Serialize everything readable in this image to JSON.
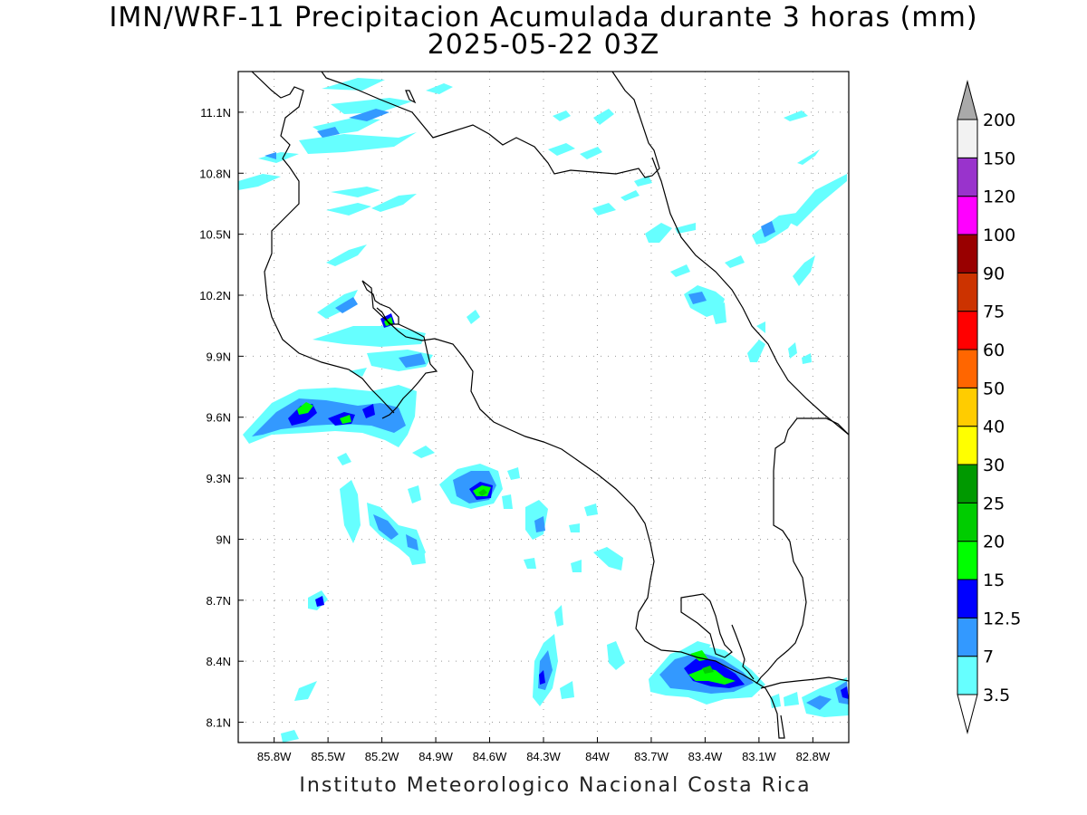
{
  "title_line1": "IMN/WRF-11 Precipitacion Acumulada durante 3 horas (mm)",
  "title_line2": "2025-05-22 03Z",
  "footer": "Instituto Meteorologico Nacional Costa Rica",
  "map": {
    "lon_range": [
      -86.0,
      -82.6
    ],
    "lat_range": [
      8.0,
      11.3
    ],
    "lon_ticks": [
      {
        "value": -85.8,
        "label": "85.8W"
      },
      {
        "value": -85.5,
        "label": "85.5W"
      },
      {
        "value": -85.2,
        "label": "85.2W"
      },
      {
        "value": -84.9,
        "label": "84.9W"
      },
      {
        "value": -84.6,
        "label": "84.6W"
      },
      {
        "value": -84.3,
        "label": "84.3W"
      },
      {
        "value": -84.0,
        "label": "84W"
      },
      {
        "value": -83.7,
        "label": "83.7W"
      },
      {
        "value": -83.4,
        "label": "83.4W"
      },
      {
        "value": -83.1,
        "label": "83.1W"
      },
      {
        "value": -82.8,
        "label": "82.8W"
      }
    ],
    "lat_ticks": [
      {
        "value": 11.1,
        "label": "11.1N"
      },
      {
        "value": 10.8,
        "label": "10.8N"
      },
      {
        "value": 10.5,
        "label": "10.5N"
      },
      {
        "value": 10.2,
        "label": "10.2N"
      },
      {
        "value": 9.9,
        "label": "9.9N"
      },
      {
        "value": 9.6,
        "label": "9.6N"
      },
      {
        "value": 9.3,
        "label": "9.3N"
      },
      {
        "value": 9.0,
        "label": "9N"
      },
      {
        "value": 8.7,
        "label": "8.7N"
      },
      {
        "value": 8.4,
        "label": "8.4N"
      },
      {
        "value": 8.1,
        "label": "8.1N"
      }
    ],
    "grid": true
  },
  "colorbar": {
    "levels": [
      "3.5",
      "7",
      "12.5",
      "15",
      "20",
      "25",
      "30",
      "40",
      "50",
      "60",
      "75",
      "90",
      "100",
      "120",
      "150",
      "200"
    ],
    "colors": [
      "#ffffff",
      "#66ffff",
      "#3399ff",
      "#0000ff",
      "#00ff00",
      "#00cc00",
      "#009900",
      "#ffff00",
      "#ffcc00",
      "#ff6600",
      "#ff0000",
      "#cc3300",
      "#990000",
      "#ff00ff",
      "#9933cc",
      "#f2f2f2",
      "#aaaaaa"
    ]
  }
}
